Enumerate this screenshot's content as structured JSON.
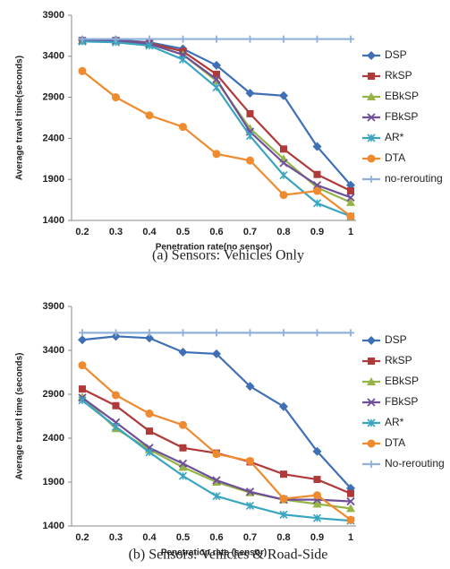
{
  "chart_data": [
    {
      "type": "line",
      "caption": "(a) Sensors: Vehicles Only",
      "xlabel": "Penetration rate(no sensor)",
      "ylabel": "Average travel time(seconds)",
      "categories": [
        "0.2",
        "0.3",
        "0.4",
        "0.5",
        "0.6",
        "0.7",
        "0.8",
        "0.9",
        "1"
      ],
      "ylim": [
        1400,
        3900
      ],
      "yticks": [
        1400,
        1900,
        2400,
        2900,
        3400,
        3900
      ],
      "grid": false,
      "legend": "right",
      "series": [
        {
          "name": "DSP",
          "color": "#3f6fb5",
          "marker": "diamond",
          "values": [
            3600,
            3600,
            3570,
            3490,
            3290,
            2950,
            2920,
            2300,
            1830
          ]
        },
        {
          "name": "RkSP",
          "color": "#b03a3a",
          "marker": "square",
          "values": [
            3590,
            3590,
            3560,
            3460,
            3180,
            2700,
            2270,
            1960,
            1760
          ]
        },
        {
          "name": "EBkSP",
          "color": "#94b447",
          "marker": "triangle",
          "values": [
            3590,
            3590,
            3550,
            3420,
            3100,
            2520,
            2150,
            1800,
            1620
          ]
        },
        {
          "name": "FBkSP",
          "color": "#6f4f9a",
          "marker": "x",
          "values": [
            3590,
            3590,
            3550,
            3420,
            3120,
            2480,
            2100,
            1830,
            1680
          ]
        },
        {
          "name": "AR*",
          "color": "#3aa5c0",
          "marker": "star",
          "values": [
            3580,
            3570,
            3530,
            3360,
            3020,
            2430,
            1950,
            1610,
            1450
          ]
        },
        {
          "name": "DTA",
          "color": "#ef8a2e",
          "marker": "circle",
          "values": [
            3220,
            2900,
            2680,
            2540,
            2210,
            2130,
            1710,
            1760,
            1450
          ]
        },
        {
          "name": "no-rerouting",
          "color": "#8fb0db",
          "marker": "plus",
          "values": [
            3610,
            3610,
            3610,
            3610,
            3610,
            3610,
            3610,
            3610,
            3610
          ]
        }
      ]
    },
    {
      "type": "line",
      "caption": "(b) Sensors: Vehicles & Road-Side",
      "xlabel": "Penetration rate (sensor)",
      "ylabel": "Average travel time (seconds)",
      "categories": [
        "0.2",
        "0.3",
        "0.4",
        "0.5",
        "0.6",
        "0.7",
        "0.8",
        "0.9",
        "1"
      ],
      "ylim": [
        1400,
        3900
      ],
      "yticks": [
        1400,
        1900,
        2400,
        2900,
        3400,
        3900
      ],
      "grid": false,
      "legend": "right",
      "series": [
        {
          "name": "DSP",
          "color": "#3f6fb5",
          "marker": "diamond",
          "values": [
            3520,
            3560,
            3540,
            3380,
            3360,
            2990,
            2760,
            2250,
            1830
          ]
        },
        {
          "name": "RkSP",
          "color": "#b03a3a",
          "marker": "square",
          "values": [
            2960,
            2770,
            2480,
            2290,
            2230,
            2130,
            1990,
            1930,
            1770
          ]
        },
        {
          "name": "EBkSP",
          "color": "#94b447",
          "marker": "triangle",
          "values": [
            2870,
            2510,
            2270,
            2070,
            1900,
            1780,
            1700,
            1650,
            1600
          ]
        },
        {
          "name": "FBkSP",
          "color": "#6f4f9a",
          "marker": "x",
          "values": [
            2860,
            2580,
            2290,
            2110,
            1920,
            1790,
            1700,
            1700,
            1680
          ]
        },
        {
          "name": "AR*",
          "color": "#3aa5c0",
          "marker": "star",
          "values": [
            2830,
            2530,
            2240,
            1970,
            1740,
            1630,
            1530,
            1490,
            1460
          ]
        },
        {
          "name": "DTA",
          "color": "#ef8a2e",
          "marker": "circle",
          "values": [
            3230,
            2890,
            2680,
            2550,
            2220,
            2140,
            1710,
            1750,
            1470
          ]
        },
        {
          "name": "No-rerouting",
          "color": "#8fb0db",
          "marker": "plus",
          "values": [
            3600,
            3600,
            3600,
            3600,
            3600,
            3600,
            3600,
            3600,
            3600
          ]
        }
      ]
    }
  ]
}
